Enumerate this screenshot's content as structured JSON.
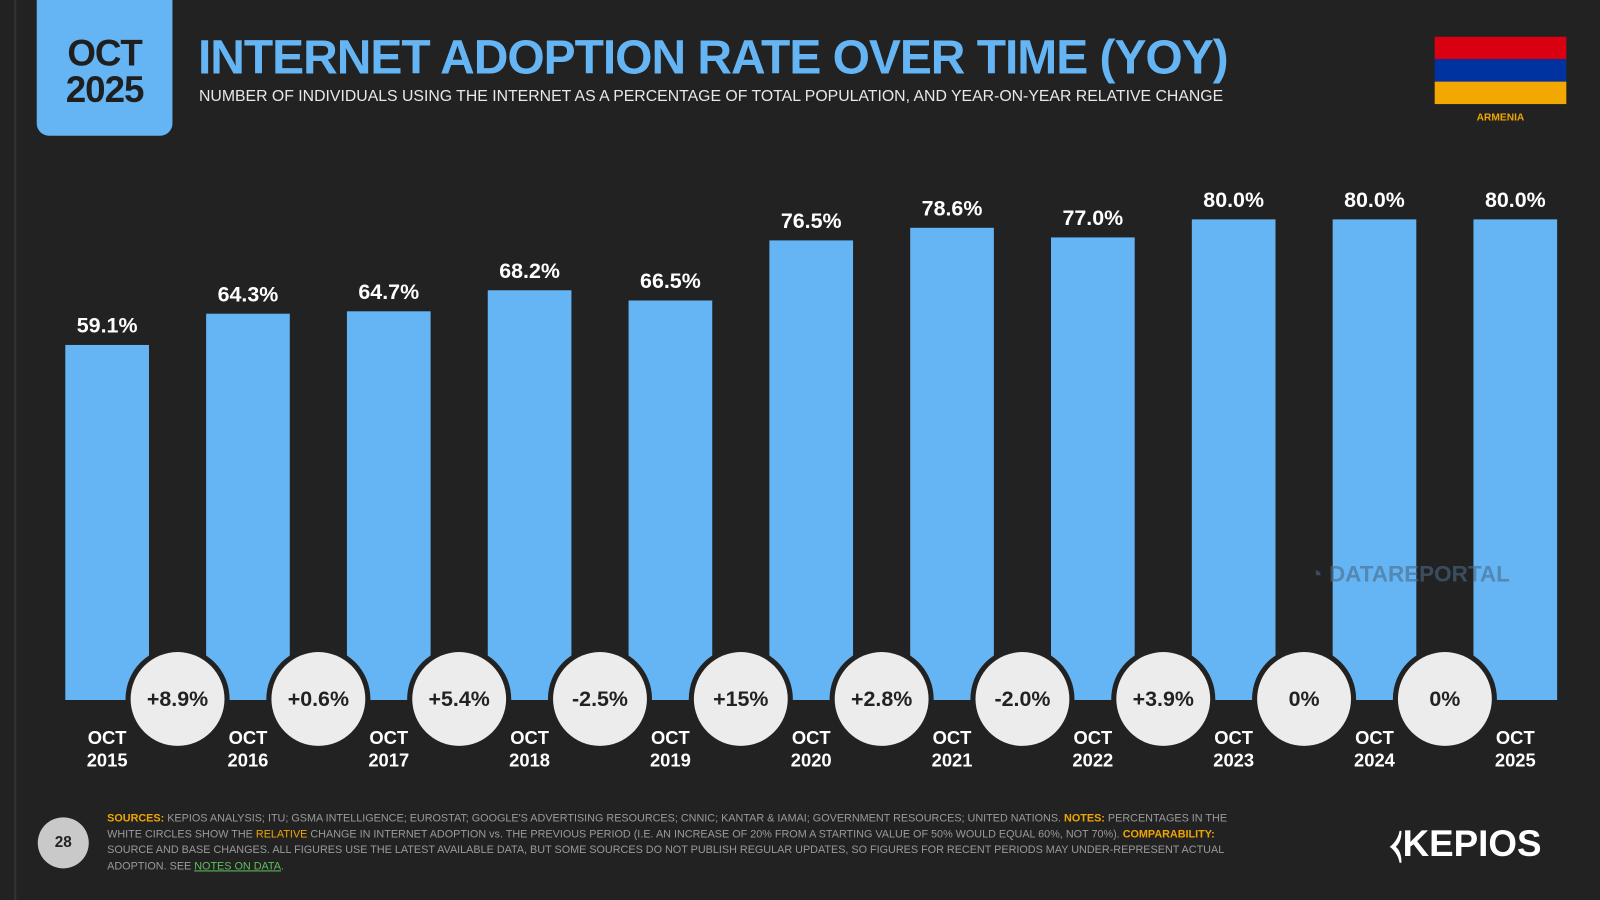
{
  "header": {
    "date_month": "OCT",
    "date_year": "2025",
    "title": "INTERNET ADOPTION RATE OVER TIME (YOY)",
    "subtitle": "NUMBER OF INDIVIDUALS USING THE INTERNET AS A PERCENTAGE OF TOTAL POPULATION, AND YEAR-ON-YEAR RELATIVE CHANGE",
    "country": "ARMENIA",
    "flag_colors": [
      "#d90012",
      "#0033a0",
      "#f2a800"
    ]
  },
  "colors": {
    "bar": "#65b5f5",
    "background": "#222222",
    "accent": "#f0a500"
  },
  "chart_data": {
    "type": "bar",
    "categories": [
      [
        "OCT",
        "2015"
      ],
      [
        "OCT",
        "2016"
      ],
      [
        "OCT",
        "2017"
      ],
      [
        "OCT",
        "2018"
      ],
      [
        "OCT",
        "2019"
      ],
      [
        "OCT",
        "2020"
      ],
      [
        "OCT",
        "2021"
      ],
      [
        "OCT",
        "2022"
      ],
      [
        "OCT",
        "2023"
      ],
      [
        "OCT",
        "2024"
      ],
      [
        "OCT",
        "2025"
      ]
    ],
    "values": [
      59.1,
      64.3,
      64.7,
      68.2,
      66.5,
      76.5,
      78.6,
      77.0,
      80.0,
      80.0,
      80.0
    ],
    "value_labels": [
      "59.1%",
      "64.3%",
      "64.7%",
      "68.2%",
      "66.5%",
      "76.5%",
      "78.6%",
      "77.0%",
      "80.0%",
      "80.0%",
      "80.0%"
    ],
    "yoy_changes": [
      "+8.9%",
      "+0.6%",
      "+5.4%",
      "-2.5%",
      "+15%",
      "+2.8%",
      "-2.0%",
      "+3.9%",
      "0%",
      "0%"
    ],
    "ylim": [
      0,
      80
    ],
    "grid": false
  },
  "watermark": "DATAREPORTAL",
  "page_number": "28",
  "footer": {
    "sources_label": "SOURCES:",
    "sources": " KEPIOS ANALYSIS; ITU; GSMA INTELLIGENCE; EUROSTAT; GOOGLE'S ADVERTISING RESOURCES; CNNIC; KANTAR & IAMAI; GOVERNMENT RESOURCES; UNITED NATIONS. ",
    "notes_label": "NOTES:",
    "notes_a": " PERCENTAGES IN THE WHITE CIRCLES SHOW THE ",
    "notes_relative": "RELATIVE",
    "notes_b": " CHANGE IN INTERNET ADOPTION vs. THE PREVIOUS PERIOD (I.E. AN INCREASE OF 20% FROM A STARTING VALUE OF 50% WOULD EQUAL 60%, NOT 70%). ",
    "comparability_label": "COMPARABILITY:",
    "comparability": " SOURCE AND BASE CHANGES. ALL FIGURES USE THE LATEST AVAILABLE DATA, BUT SOME SOURCES DO NOT PUBLISH REGULAR UPDATES, SO FIGURES FOR RECENT PERIODS MAY UNDER-REPRESENT ACTUAL ADOPTION. SEE ",
    "notes_link": "NOTES ON DATA",
    "end": "."
  },
  "logo": "KEPIOS"
}
